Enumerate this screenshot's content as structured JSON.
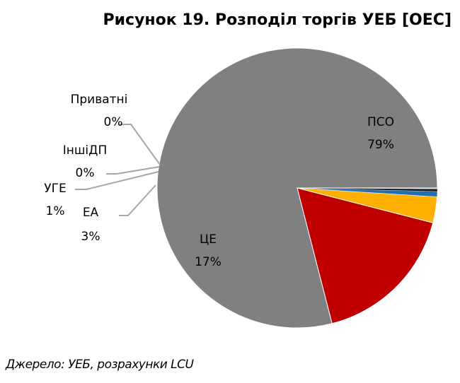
{
  "chart_data": {
    "type": "pie",
    "title": "Рисунок 19. Розподіл торгів УЕБ [OEC]",
    "source": "Джерело: УЕБ, розрахунки LCU",
    "slices": [
      {
        "name": "ПСО",
        "value": 79,
        "label": "79%",
        "color": "#808080"
      },
      {
        "name": "ЦЕ",
        "value": 17,
        "label": "17%",
        "color": "#c00000"
      },
      {
        "name": "ЕА",
        "value": 3,
        "label": "3%",
        "color": "#ffb000"
      },
      {
        "name": "УГЕ",
        "value": 0.6,
        "label": "1%",
        "color": "#1f6fb4"
      },
      {
        "name": "ІншіДП",
        "value": 0.3,
        "label": "0%",
        "color": "#1a1a1a"
      },
      {
        "name": "Приватні",
        "value": 0.1,
        "label": "0%",
        "color": "#d9d9d9"
      }
    ],
    "legend": "none"
  }
}
